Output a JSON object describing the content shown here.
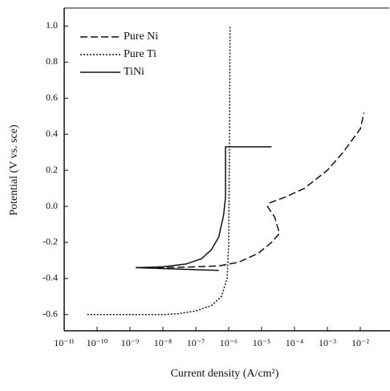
{
  "chart_data": {
    "type": "line",
    "x_label": "Current density (A/cm²)",
    "y_label": "Potential (V vs. sce)",
    "xscale": "log",
    "xlim": [
      1e-11,
      0.08
    ],
    "ylim": [
      -0.69,
      1.1
    ],
    "xticks": [
      {
        "value": 1e-11,
        "label": "10⁻¹¹"
      },
      {
        "value": 1e-10,
        "label": "10⁻¹⁰"
      },
      {
        "value": 1e-09,
        "label": "10⁻⁹"
      },
      {
        "value": 1e-08,
        "label": "10⁻⁸"
      },
      {
        "value": 1e-07,
        "label": "10⁻⁷"
      },
      {
        "value": 1e-06,
        "label": "10⁻⁶"
      },
      {
        "value": 1e-05,
        "label": "10⁻⁵"
      },
      {
        "value": 0.0001,
        "label": "10⁻⁴"
      },
      {
        "value": 0.001,
        "label": "10⁻³"
      },
      {
        "value": 0.01,
        "label": "10⁻²"
      }
    ],
    "yticks": [
      {
        "value": 1,
        "label": "1.0"
      },
      0.8,
      0.6,
      0.4,
      0.2,
      {
        "value": 0,
        "label": "0.0"
      },
      -0.2,
      -0.4,
      -0.6
    ],
    "legend": "upper left",
    "series": [
      {
        "name": "Pure Ni",
        "color": "#111111",
        "dash": "9,4",
        "x": [
          1.5e-09,
          1e-08,
          1e-07,
          5e-07,
          2e-06,
          8e-06,
          2e-05,
          3.5e-05,
          2.5e-05,
          1.5e-05,
          1.8e-05,
          5e-05,
          0.0002,
          0.001,
          0.003,
          0.01,
          0.013
        ],
        "values": [
          -0.34,
          -0.34,
          -0.335,
          -0.33,
          -0.31,
          -0.26,
          -0.2,
          -0.15,
          -0.06,
          0.0,
          0.02,
          0.05,
          0.1,
          0.2,
          0.3,
          0.43,
          0.52
        ]
      },
      {
        "name": "Pure Ti",
        "color": "#111111",
        "dash": "2,2",
        "x": [
          5e-11,
          1e-09,
          1e-08,
          3e-08,
          1e-07,
          3e-07,
          6e-07,
          9e-07,
          1e-06,
          1.05e-06,
          1.1e-06
        ],
        "values": [
          -0.6,
          -0.6,
          -0.6,
          -0.595,
          -0.58,
          -0.55,
          -0.5,
          -0.4,
          -0.2,
          0.3,
          1.0
        ]
      },
      {
        "name": "TiNi",
        "color": "#111111",
        "dash": "none",
        "x": [
          1.5e-09,
          1e-08,
          5e-08,
          1.5e-07,
          3e-07,
          5e-07,
          7e-07,
          8e-07,
          8e-07,
          2e-05,
          null,
          1.5e-09,
          5e-07
        ],
        "values": [
          -0.34,
          -0.335,
          -0.32,
          -0.29,
          -0.24,
          -0.17,
          -0.05,
          0.05,
          0.33,
          0.33,
          null,
          -0.34,
          -0.355
        ]
      }
    ]
  }
}
